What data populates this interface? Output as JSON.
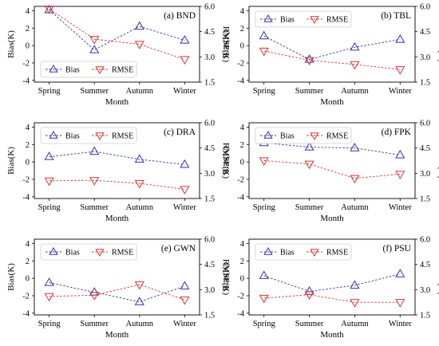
{
  "chart_data": [
    {
      "type": "line",
      "label": "(a) BND",
      "categories": [
        "Spring",
        "Summer",
        "Autumn",
        "Winter"
      ],
      "xlabel": "Month",
      "ylabel": "Bias(K)",
      "y2label": "RMSE(K)",
      "ylim": [
        -4.2,
        4.5
      ],
      "y2lim": [
        1.5,
        6.0
      ],
      "yticks": [
        -4,
        -2,
        0,
        2,
        4
      ],
      "y2ticks": [
        1.5,
        3.0,
        4.5,
        6.0
      ],
      "series": [
        {
          "name": "Bias",
          "axis": "left",
          "marker": "triangle-up",
          "color": "#3333aa",
          "values": [
            4.1,
            -0.5,
            2.2,
            0.6
          ]
        },
        {
          "name": "RMSE",
          "axis": "right",
          "marker": "triangle-down",
          "color": "#dd3333",
          "values": [
            5.85,
            4.05,
            3.75,
            2.85
          ]
        }
      ],
      "legend_position": "bottom-left",
      "legend_labels": [
        "Bias",
        "RMSE"
      ]
    },
    {
      "type": "line",
      "label": "(b) TBL",
      "categories": [
        "Spring",
        "Summer",
        "Autumn",
        "Winter"
      ],
      "xlabel": "Month",
      "ylabel": "Bias(K)",
      "y2label": "RMSE(K)",
      "ylim": [
        -4.2,
        4.5
      ],
      "y2lim": [
        1.5,
        6.0
      ],
      "yticks": [
        -4,
        -2,
        0,
        2,
        4
      ],
      "y2ticks": [
        1.5,
        3.0,
        4.5,
        6.0
      ],
      "series": [
        {
          "name": "Bias",
          "axis": "left",
          "marker": "triangle-up",
          "color": "#3333aa",
          "values": [
            1.1,
            -1.6,
            -0.2,
            0.7
          ]
        },
        {
          "name": "RMSE",
          "axis": "right",
          "marker": "triangle-down",
          "color": "#dd3333",
          "values": [
            3.35,
            2.8,
            2.55,
            2.25
          ]
        }
      ],
      "legend_position": "top-left",
      "legend_labels": [
        "Bias",
        "RMSE"
      ]
    },
    {
      "type": "line",
      "label": "(c) DRA",
      "categories": [
        "Spring",
        "Summer",
        "Autumn",
        "Winter"
      ],
      "xlabel": "Month",
      "ylabel": "Bias(K)",
      "y2label": "RMSE(K)",
      "ylim": [
        -4.2,
        4.5
      ],
      "y2lim": [
        1.5,
        6.0
      ],
      "yticks": [
        -4,
        -2,
        0,
        2,
        4
      ],
      "y2ticks": [
        1.5,
        3.0,
        4.5,
        6.0
      ],
      "series": [
        {
          "name": "Bias",
          "axis": "left",
          "marker": "triangle-up",
          "color": "#3333aa",
          "values": [
            0.6,
            1.2,
            0.3,
            -0.3
          ]
        },
        {
          "name": "RMSE",
          "axis": "right",
          "marker": "triangle-down",
          "color": "#dd3333",
          "values": [
            2.55,
            2.58,
            2.4,
            2.05
          ]
        }
      ],
      "legend_position": "top-left",
      "legend_labels": [
        "Bias",
        "RMSE"
      ]
    },
    {
      "type": "line",
      "label": "(d) FPK",
      "categories": [
        "Spring",
        "Summer",
        "Autumn",
        "Winter"
      ],
      "xlabel": "Month",
      "ylabel": "Bias(K)",
      "y2label": "RMSE(K)",
      "ylim": [
        -4.2,
        4.5
      ],
      "y2lim": [
        1.5,
        6.0
      ],
      "yticks": [
        -4,
        -2,
        0,
        2,
        4
      ],
      "y2ticks": [
        1.5,
        3.0,
        4.5,
        6.0
      ],
      "series": [
        {
          "name": "Bias",
          "axis": "left",
          "marker": "triangle-up",
          "color": "#3333aa",
          "values": [
            2.2,
            1.7,
            1.6,
            0.8
          ]
        },
        {
          "name": "RMSE",
          "axis": "right",
          "marker": "triangle-down",
          "color": "#dd3333",
          "values": [
            3.75,
            3.55,
            2.7,
            2.95
          ]
        }
      ],
      "legend_position": "top-left",
      "legend_labels": [
        "Bias",
        "RMSE"
      ]
    },
    {
      "type": "line",
      "label": "(e) GWN",
      "categories": [
        "Spring",
        "Summer",
        "Autumn",
        "Winter"
      ],
      "xlabel": "Month",
      "ylabel": "Bias(K)",
      "y2label": "RMSE(K)",
      "ylim": [
        -4.2,
        4.5
      ],
      "y2lim": [
        1.5,
        6.0
      ],
      "yticks": [
        -4,
        -2,
        0,
        2,
        4
      ],
      "y2ticks": [
        1.5,
        3.0,
        4.5,
        6.0
      ],
      "series": [
        {
          "name": "Bias",
          "axis": "left",
          "marker": "triangle-up",
          "color": "#3333aa",
          "values": [
            -0.5,
            -1.6,
            -2.7,
            -0.9
          ]
        },
        {
          "name": "RMSE",
          "axis": "right",
          "marker": "triangle-down",
          "color": "#dd3333",
          "values": [
            2.6,
            2.67,
            3.3,
            2.4
          ]
        }
      ],
      "legend_position": "top-left",
      "legend_labels": [
        "Bias",
        "RMSE"
      ]
    },
    {
      "type": "line",
      "label": "(f) PSU",
      "categories": [
        "Spring",
        "Summer",
        "Autumn",
        "Winter"
      ],
      "xlabel": "Month",
      "ylabel": "Bias(K)",
      "y2label": "RMSE(K)",
      "ylim": [
        -4.2,
        4.5
      ],
      "y2lim": [
        1.5,
        6.0
      ],
      "yticks": [
        -4,
        -2,
        0,
        2,
        4
      ],
      "y2ticks": [
        1.5,
        3.0,
        4.5,
        6.0
      ],
      "series": [
        {
          "name": "Bias",
          "axis": "left",
          "marker": "triangle-up",
          "color": "#3333aa",
          "values": [
            0.3,
            -1.5,
            -0.8,
            0.5
          ]
        },
        {
          "name": "RMSE",
          "axis": "right",
          "marker": "triangle-down",
          "color": "#dd3333",
          "values": [
            2.5,
            2.7,
            2.25,
            2.25
          ]
        }
      ],
      "legend_position": "top-left",
      "legend_labels": [
        "Bias",
        "RMSE"
      ]
    }
  ]
}
